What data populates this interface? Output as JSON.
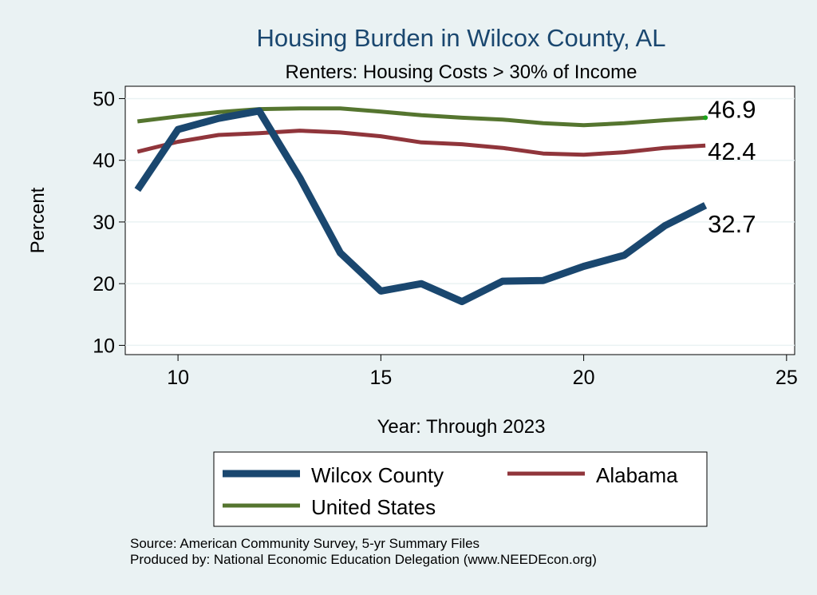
{
  "chart_data": {
    "type": "line",
    "title": "Housing Burden in Wilcox County, AL",
    "subtitle": "Renters: Housing Costs > 30% of Income",
    "xlabel": "Year: Through 2023",
    "ylabel": "Percent",
    "xlim": [
      8.7,
      25.2
    ],
    "ylim": [
      8.5,
      52
    ],
    "xticks": [
      10,
      15,
      20,
      25
    ],
    "yticks": [
      10,
      20,
      30,
      40,
      50
    ],
    "grid": true,
    "x": [
      9,
      10,
      11,
      12,
      13,
      14,
      15,
      16,
      17,
      18,
      19,
      20,
      21,
      22,
      23
    ],
    "series": [
      {
        "name": "Wilcox County",
        "color": "#1a476f",
        "values": [
          35.2,
          45.0,
          46.8,
          48.0,
          37.2,
          25.0,
          18.8,
          20.0,
          17.1,
          20.4,
          20.5,
          22.8,
          24.6,
          29.4,
          32.7
        ],
        "end_label": "32.7"
      },
      {
        "name": "Alabama",
        "color": "#90353b",
        "values": [
          41.4,
          43.0,
          44.1,
          44.4,
          44.8,
          44.5,
          43.9,
          42.9,
          42.6,
          42.0,
          41.1,
          40.9,
          41.3,
          42.0,
          42.4
        ],
        "end_label": "42.4"
      },
      {
        "name": "United States",
        "color": "#55752f",
        "values": [
          46.3,
          47.1,
          47.8,
          48.3,
          48.4,
          48.4,
          47.9,
          47.3,
          46.9,
          46.6,
          46.0,
          45.7,
          46.0,
          46.5,
          46.9
        ],
        "end_label": "46.9"
      }
    ],
    "legend": {
      "position": "bottom",
      "entries": [
        "Wilcox County",
        "Alabama",
        "United States"
      ]
    }
  },
  "footer": {
    "source": "Source: American Community Survey, 5-yr Summary Files",
    "produced_by": "Produced by: National Economic Education Delegation (www.NEEDEcon.org)"
  },
  "colors": {
    "background": "#eaf2f3",
    "plot_background": "#ffffff",
    "title": "#1a476f"
  }
}
